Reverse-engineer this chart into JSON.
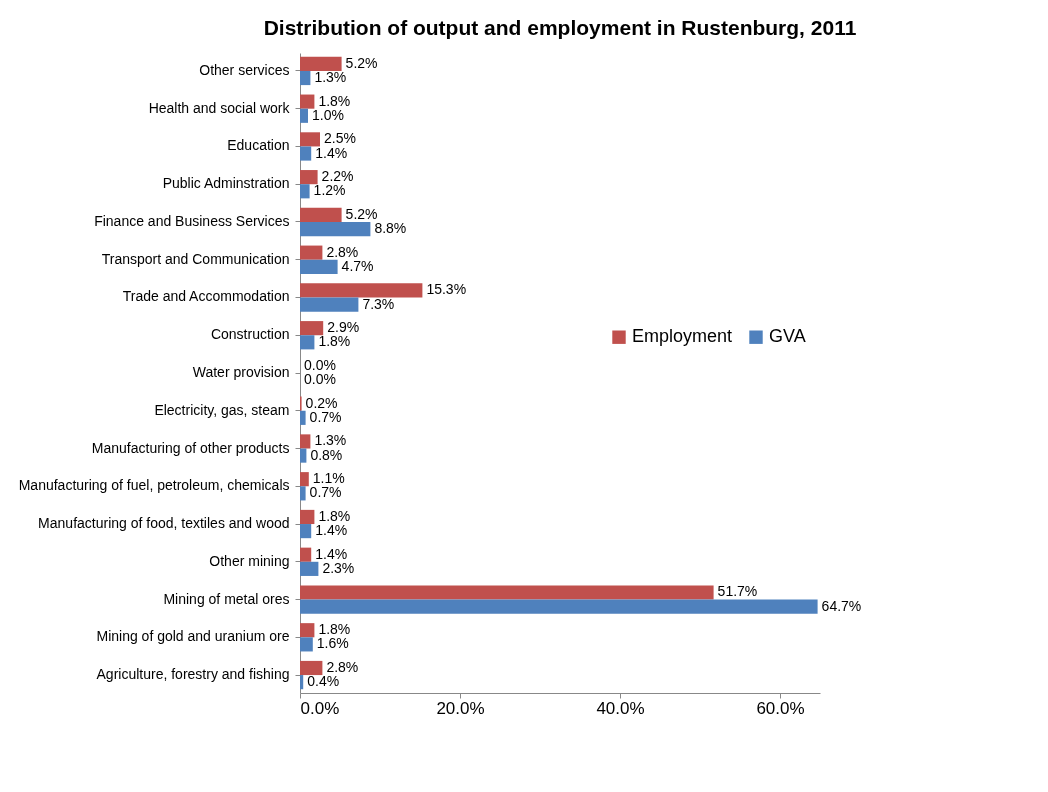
{
  "chart_data": {
    "type": "bar",
    "orientation": "horizontal",
    "title": "Distribution of output and employment in Rustenburg, 2011",
    "categories": [
      "Other services",
      "Health and social work",
      "Education",
      "Public Adminstration",
      "Finance and Business Services",
      "Transport and Communication",
      "Trade and Accommodation",
      "Construction",
      "Water provision",
      "Electricity, gas, steam",
      "Manufacturing of other products",
      "Manufacturing of fuel, petroleum, chemicals",
      "Manufacturing of food, textiles and wood",
      "Other mining",
      "Mining of metal ores",
      "Mining of gold and uranium ore",
      "Agriculture, forestry and fishing"
    ],
    "series": [
      {
        "name": "Employment",
        "color": "#c0504d",
        "values": [
          5.2,
          1.8,
          2.5,
          2.2,
          5.2,
          2.8,
          15.3,
          2.9,
          0.0,
          0.2,
          1.3,
          1.1,
          1.8,
          1.4,
          51.7,
          1.8,
          2.8
        ],
        "value_labels": [
          "5.2%",
          "1.8%",
          "2.5%",
          "2.2%",
          "5.2%",
          "2.8%",
          "15.3%",
          "2.9%",
          "0.0%",
          "0.2%",
          "1.3%",
          "1.1%",
          "1.8%",
          "1.4%",
          "51.7%",
          "1.8%",
          "2.8%"
        ]
      },
      {
        "name": "GVA",
        "color": "#4f81bd",
        "values": [
          1.3,
          1.0,
          1.4,
          1.2,
          8.8,
          4.7,
          7.3,
          1.8,
          0.0,
          0.7,
          0.8,
          0.7,
          1.4,
          2.3,
          64.7,
          1.6,
          0.4
        ],
        "value_labels": [
          "1.3%",
          "1.0%",
          "1.4%",
          "1.2%",
          "8.8%",
          "4.7%",
          "7.3%",
          "1.8%",
          "0.0%",
          "0.7%",
          "0.8%",
          "0.7%",
          "1.4%",
          "2.3%",
          "64.7%",
          "1.6%",
          "0.4%"
        ]
      }
    ],
    "xlim": [
      0,
      65
    ],
    "xticks": [
      {
        "value": 0,
        "label": "0.0%"
      },
      {
        "value": 20,
        "label": "20.0%"
      },
      {
        "value": 40,
        "label": "40.0%"
      },
      {
        "value": 60,
        "label": "60.0%"
      }
    ],
    "legend": "right",
    "grid": false
  }
}
